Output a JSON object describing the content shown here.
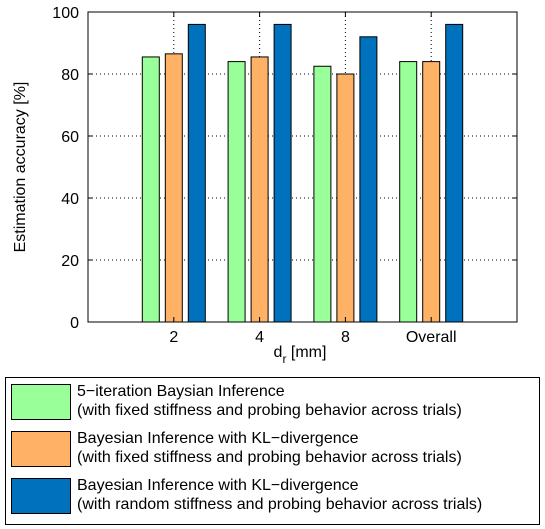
{
  "chart_data": {
    "type": "bar",
    "categories": [
      "2",
      "4",
      "8",
      "Overall"
    ],
    "series": [
      {
        "name_line1": "5−iteration Baysian Inference",
        "name_line2": "(with fixed stiffness and probing behavior across trials)",
        "color": "#99ff99",
        "values": [
          85.5,
          84,
          82.5,
          84
        ]
      },
      {
        "name_line1": "Bayesian Inference with KL−divergence",
        "name_line2": "(with fixed stiffness and probing behavior across trials)",
        "color": "#ffb266",
        "values": [
          86.5,
          85.5,
          80,
          84
        ]
      },
      {
        "name_line1": "Bayesian Inference with KL−divergence",
        "name_line2": "(with random stiffness and probing behavior across trials)",
        "color": "#0072bd",
        "values": [
          96,
          96,
          92,
          96
        ]
      }
    ],
    "ylabel": "Estimation accuracy [%]",
    "xlabel_main": "d",
    "xlabel_sub": "r",
    "xlabel_unit": " [mm]",
    "ylim": [
      0,
      100
    ],
    "yticks": [
      "0",
      "20",
      "40",
      "60",
      "80",
      "100"
    ],
    "grid": true,
    "legend_position": "below"
  }
}
